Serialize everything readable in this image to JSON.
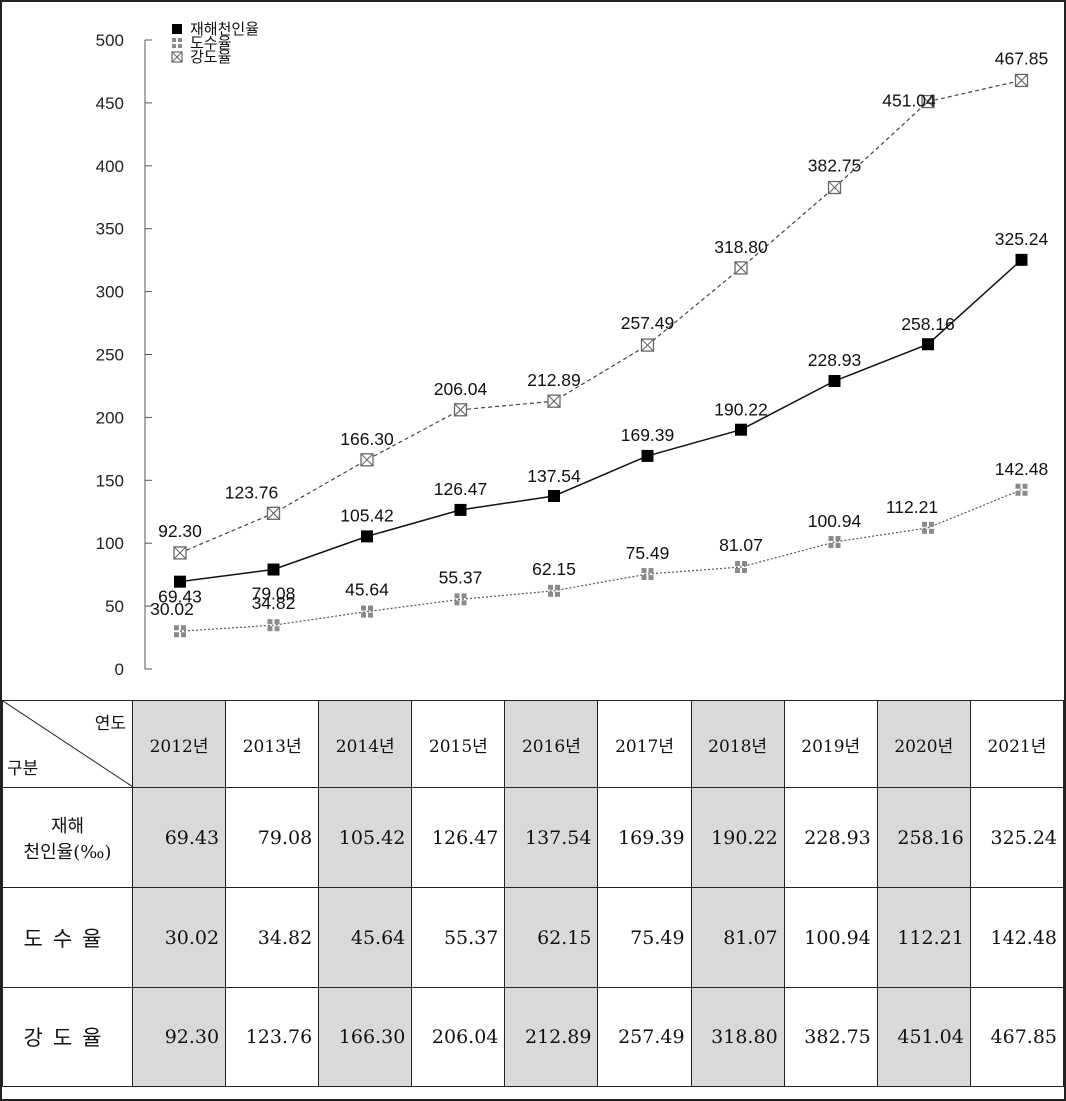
{
  "chart_data": {
    "type": "line",
    "categories": [
      "2012",
      "2013",
      "2014",
      "2015",
      "2016",
      "2017",
      "2018",
      "2019",
      "2020",
      "2021"
    ],
    "y_ticks": [
      "0",
      "50",
      "100",
      "150",
      "200",
      "250",
      "300",
      "350",
      "400",
      "450",
      "500"
    ],
    "ylim": [
      0,
      500
    ],
    "grid": false,
    "legend_position": "top-left",
    "series": [
      {
        "name": "재해천인율",
        "marker": "filled-square",
        "line": "solid",
        "color": "#000000",
        "values": [
          69.43,
          79.08,
          105.42,
          126.47,
          137.54,
          169.39,
          190.22,
          228.93,
          258.16,
          325.24
        ],
        "labels": [
          "69.43",
          "79.08",
          "105.42",
          "126.47",
          "137.54",
          "169.39",
          "190.22",
          "228.93",
          "258.16",
          "325.24"
        ]
      },
      {
        "name": "도수율",
        "marker": "grid-square",
        "line": "dotted",
        "color": "#888888",
        "values": [
          30.02,
          34.82,
          45.64,
          55.37,
          62.15,
          75.49,
          81.07,
          100.94,
          112.21,
          142.48
        ],
        "labels": [
          "30.02",
          "34.82",
          "45.64",
          "55.37",
          "62.15",
          "75.49",
          "81.07",
          "100.94",
          "112.21",
          "142.48"
        ]
      },
      {
        "name": "강도율",
        "marker": "crossed-square",
        "line": "dashed",
        "color": "#444444",
        "values": [
          92.3,
          123.76,
          166.3,
          206.04,
          212.89,
          257.49,
          318.8,
          382.75,
          451.04,
          467.85
        ],
        "labels": [
          "92.30",
          "123.76",
          "166.30",
          "206.04",
          "212.89",
          "257.49",
          "318.80",
          "382.75",
          "451.04",
          "467.85"
        ]
      }
    ]
  },
  "table": {
    "corner_top": "연도",
    "corner_bottom": "구분",
    "years": [
      "2012년",
      "2013년",
      "2014년",
      "2015년",
      "2016년",
      "2017년",
      "2018년",
      "2019년",
      "2020년",
      "2021년"
    ],
    "rows": [
      {
        "label_line1": "재해",
        "label_line2": "천인율(‰)",
        "values": [
          "69.43",
          "79.08",
          "105.42",
          "126.47",
          "137.54",
          "169.39",
          "190.22",
          "228.93",
          "258.16",
          "325.24"
        ]
      },
      {
        "label": "도수율",
        "values": [
          "30.02",
          "34.82",
          "45.64",
          "55.37",
          "62.15",
          "75.49",
          "81.07",
          "100.94",
          "112.21",
          "142.48"
        ]
      },
      {
        "label": "강도율",
        "values": [
          "92.30",
          "123.76",
          "166.30",
          "206.04",
          "212.89",
          "257.49",
          "318.80",
          "382.75",
          "451.04",
          "467.85"
        ]
      }
    ]
  }
}
